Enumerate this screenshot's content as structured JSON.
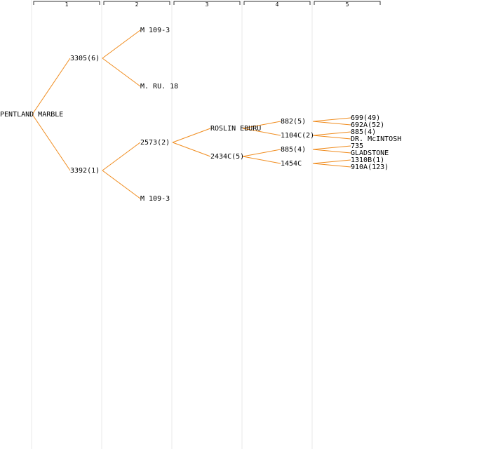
{
  "colors": {
    "background": "#ffffff",
    "column_divider": "#e8e8e8",
    "header_bracket": "#333333",
    "connector": "#f08c1e",
    "text": "#000000"
  },
  "generations": [
    "1",
    "2",
    "3",
    "4",
    "5"
  ],
  "tree": {
    "label": "PENTLAND MARBLE",
    "children": [
      {
        "label": "3305(6)",
        "children": [
          {
            "label": "M 109-3",
            "children": []
          },
          {
            "label": "M. RU. 18",
            "children": []
          }
        ]
      },
      {
        "label": "3392(1)",
        "children": [
          {
            "label": "2573(2)",
            "children": [
              {
                "label": "ROSLIN EBURU",
                "children": [
                  {
                    "label": "882(5)",
                    "children": [
                      {
                        "label": "699(49)",
                        "children": []
                      },
                      {
                        "label": "692A(52)",
                        "children": []
                      }
                    ]
                  },
                  {
                    "label": "1104C(2)",
                    "children": [
                      {
                        "label": "885(4)",
                        "children": []
                      },
                      {
                        "label": "DR. McINTOSH",
                        "children": []
                      }
                    ]
                  }
                ]
              },
              {
                "label": "2434C(5)",
                "children": [
                  {
                    "label": "885(4)",
                    "children": [
                      {
                        "label": "735",
                        "children": []
                      },
                      {
                        "label": "GLADSTONE",
                        "children": []
                      }
                    ]
                  },
                  {
                    "label": "1454C",
                    "children": [
                      {
                        "label": "1310B(1)",
                        "children": []
                      },
                      {
                        "label": "910A(123)",
                        "children": []
                      }
                    ]
                  }
                ]
              }
            ]
          },
          {
            "label": "M 109-3",
            "children": []
          }
        ]
      }
    ]
  }
}
